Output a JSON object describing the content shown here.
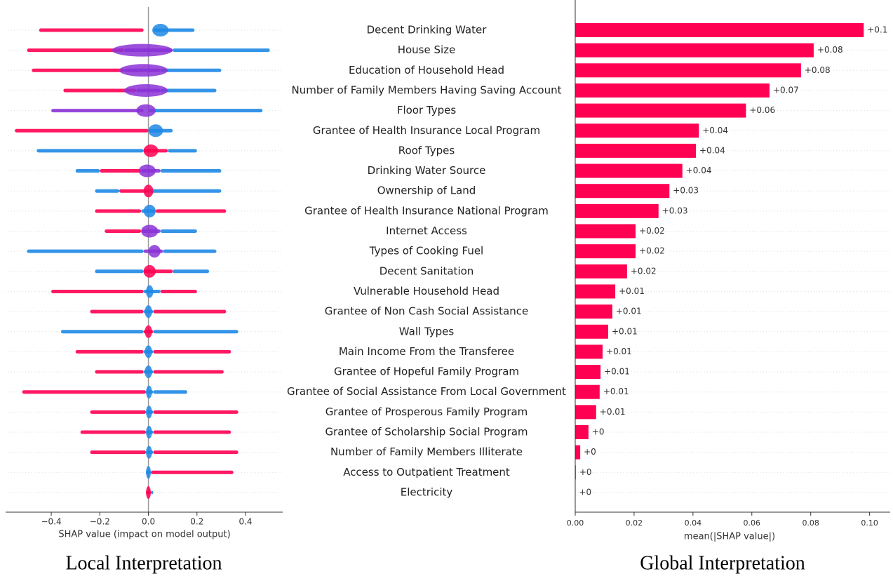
{
  "chart_data": [
    {
      "type": "beeswarm",
      "title": "Local Interpretation",
      "xlabel": "SHAP value (impact on model output)",
      "xlim": [
        -0.588,
        0.553
      ],
      "xticks": [
        {
          "value": -0.4,
          "label": "−0.4"
        },
        {
          "value": -0.2,
          "label": "−0.2"
        },
        {
          "value": 0,
          "label": "0.0"
        },
        0.2,
        0.4
      ],
      "rows": [
        {
          "segments": [
            [
              -0.45,
              -0.02,
              "#ff0052"
            ],
            [
              0.02,
              0.19,
              "#1e88e5"
            ]
          ],
          "dense": [
            0.016,
            0.083
          ]
        },
        {
          "segments": [
            [
              -0.5,
              -0.1,
              "#ff0052"
            ],
            [
              -0.1,
              0.1,
              "#8b33d6"
            ],
            [
              0.1,
              0.5,
              "#1e88e5"
            ]
          ],
          "dense": [
            -0.15,
            0.1
          ]
        },
        {
          "segments": [
            [
              -0.48,
              -0.1,
              "#ff0052"
            ],
            [
              -0.1,
              0.05,
              "#8b33d6"
            ],
            [
              0.05,
              0.3,
              "#1e88e5"
            ]
          ],
          "dense": [
            -0.12,
            0.08
          ]
        },
        {
          "segments": [
            [
              -0.35,
              -0.05,
              "#ff0052"
            ],
            [
              -0.05,
              0.05,
              "#8b33d6"
            ],
            [
              0.05,
              0.28,
              "#1e88e5"
            ]
          ],
          "dense": [
            -0.1,
            0.08
          ]
        },
        {
          "segments": [
            [
              -0.4,
              -0.02,
              "#8b33d6"
            ],
            [
              0.0,
              0.47,
              "#1e88e5"
            ]
          ],
          "dense": [
            -0.05,
            0.03
          ]
        },
        {
          "segments": [
            [
              -0.55,
              0.0,
              "#ff0052"
            ],
            [
              0.0,
              0.1,
              "#1e88e5"
            ]
          ],
          "dense": [
            0.0,
            0.06
          ]
        },
        {
          "segments": [
            [
              -0.46,
              -0.02,
              "#1e88e5"
            ],
            [
              -0.02,
              0.08,
              "#ff0052"
            ],
            [
              0.08,
              0.2,
              "#1e88e5"
            ]
          ],
          "dense": [
            -0.02,
            0.04
          ]
        },
        {
          "segments": [
            [
              -0.3,
              -0.2,
              "#1e88e5"
            ],
            [
              -0.2,
              -0.03,
              "#ff0052"
            ],
            [
              -0.03,
              0.05,
              "#8b33d6"
            ],
            [
              0.05,
              0.3,
              "#1e88e5"
            ]
          ],
          "dense": [
            -0.04,
            0.03
          ]
        },
        {
          "segments": [
            [
              -0.22,
              -0.12,
              "#1e88e5"
            ],
            [
              -0.12,
              0.0,
              "#ff0052"
            ],
            [
              0.0,
              0.3,
              "#1e88e5"
            ]
          ],
          "dense": [
            -0.02,
            0.02
          ]
        },
        {
          "segments": [
            [
              -0.22,
              -0.03,
              "#ff0052"
            ],
            [
              -0.03,
              0.03,
              "#1e88e5"
            ],
            [
              0.03,
              0.32,
              "#ff0052"
            ]
          ],
          "dense": [
            -0.02,
            0.03
          ]
        },
        {
          "segments": [
            [
              -0.18,
              -0.03,
              "#ff0052"
            ],
            [
              -0.03,
              0.05,
              "#8b33d6"
            ],
            [
              0.05,
              0.2,
              "#1e88e5"
            ]
          ],
          "dense": [
            -0.03,
            0.04
          ]
        },
        {
          "segments": [
            [
              -0.5,
              -0.02,
              "#1e88e5"
            ],
            [
              -0.02,
              0.06,
              "#8b33d6"
            ],
            [
              0.06,
              0.28,
              "#1e88e5"
            ]
          ],
          "dense": [
            0.0,
            0.05
          ]
        },
        {
          "segments": [
            [
              -0.22,
              -0.02,
              "#1e88e5"
            ],
            [
              -0.02,
              0.1,
              "#ff0052"
            ],
            [
              0.1,
              0.25,
              "#1e88e5"
            ]
          ],
          "dense": [
            -0.02,
            0.03
          ]
        },
        {
          "segments": [
            [
              -0.4,
              -0.02,
              "#ff0052"
            ],
            [
              -0.02,
              0.05,
              "#1e88e5"
            ],
            [
              0.05,
              0.2,
              "#ff0052"
            ]
          ],
          "dense": [
            -0.01,
            0.02
          ]
        },
        {
          "segments": [
            [
              -0.24,
              -0.02,
              "#ff0052"
            ],
            [
              -0.02,
              0.02,
              "#1e88e5"
            ],
            [
              0.02,
              0.32,
              "#ff0052"
            ]
          ],
          "dense": [
            -0.015,
            0.015
          ]
        },
        {
          "segments": [
            [
              -0.36,
              -0.02,
              "#1e88e5"
            ],
            [
              -0.02,
              0.02,
              "#ff0052"
            ],
            [
              0.02,
              0.37,
              "#1e88e5"
            ]
          ],
          "dense": [
            -0.015,
            0.015
          ]
        },
        {
          "segments": [
            [
              -0.3,
              -0.02,
              "#ff0052"
            ],
            [
              -0.02,
              0.02,
              "#1e88e5"
            ],
            [
              0.02,
              0.34,
              "#ff0052"
            ]
          ],
          "dense": [
            -0.015,
            0.015
          ]
        },
        {
          "segments": [
            [
              -0.22,
              -0.02,
              "#ff0052"
            ],
            [
              -0.02,
              0.02,
              "#1e88e5"
            ],
            [
              0.02,
              0.31,
              "#ff0052"
            ]
          ],
          "dense": [
            -0.015,
            0.015
          ]
        },
        {
          "segments": [
            [
              -0.52,
              -0.01,
              "#ff0052"
            ],
            [
              -0.01,
              0.02,
              "#1e88e5"
            ],
            [
              0.02,
              0.16,
              "#1e88e5"
            ]
          ],
          "dense": [
            -0.01,
            0.015
          ]
        },
        {
          "segments": [
            [
              -0.24,
              -0.01,
              "#ff0052"
            ],
            [
              -0.01,
              0.02,
              "#1e88e5"
            ],
            [
              0.02,
              0.37,
              "#ff0052"
            ]
          ],
          "dense": [
            -0.01,
            0.015
          ]
        },
        {
          "segments": [
            [
              -0.28,
              -0.01,
              "#ff0052"
            ],
            [
              -0.01,
              0.02,
              "#1e88e5"
            ],
            [
              0.02,
              0.34,
              "#ff0052"
            ]
          ],
          "dense": [
            -0.01,
            0.015
          ]
        },
        {
          "segments": [
            [
              -0.24,
              -0.01,
              "#ff0052"
            ],
            [
              -0.01,
              0.02,
              "#1e88e5"
            ],
            [
              0.02,
              0.37,
              "#ff0052"
            ]
          ],
          "dense": [
            -0.01,
            0.015
          ]
        },
        {
          "segments": [
            [
              -0.01,
              0.01,
              "#1e88e5"
            ],
            [
              0.01,
              0.35,
              "#ff0052"
            ]
          ],
          "dense": [
            -0.01,
            0.01
          ]
        },
        {
          "segments": [
            [
              -0.01,
              0.01,
              "#ff0052"
            ],
            [
              0.01,
              0.02,
              "#1e88e5"
            ]
          ],
          "dense": [
            -0.01,
            0.01
          ]
        }
      ]
    },
    {
      "type": "bar",
      "orientation": "horizontal",
      "title": "Global Interpretation",
      "xlabel": "mean(|SHAP value|)",
      "color": "#ff0052",
      "xlim": [
        0,
        0.107
      ],
      "xticks": [
        {
          "value": 0,
          "label": "0.00"
        },
        0.02,
        0.04,
        0.06,
        0.08,
        {
          "value": 0.1,
          "label": "0.10"
        }
      ],
      "categories": [
        "Decent Drinking Water",
        "House Size",
        "Education of Household Head",
        "Number of Family Members Having Saving Account",
        "Floor Types",
        "Grantee of Health Insurance Local Program",
        "Roof Types",
        "Drinking Water Source",
        "Ownership of Land",
        "Grantee of Health Insurance National Program",
        "Internet Access",
        "Types of Cooking Fuel",
        "Decent Sanitation",
        "Vulnerable Household Head",
        "Grantee of Non Cash Social Assistance",
        "Wall Types",
        "Main Income From the Transferee",
        "Grantee of Hopeful Family Program",
        "Grantee of Social Assistance From Local Government",
        "Grantee of Prosperous Family Program",
        "Grantee of Scholarship Social Program",
        "Number of Family Members Illiterate",
        "Access to Outpatient Treatment",
        "Electricity"
      ],
      "values": [
        0.098,
        0.081,
        0.0767,
        0.066,
        0.058,
        0.042,
        0.041,
        0.0364,
        0.032,
        0.0283,
        0.0205,
        0.0205,
        0.0176,
        0.0136,
        0.0126,
        0.0112,
        0.0093,
        0.0086,
        0.0083,
        0.0071,
        0.0045,
        0.0017,
        0.0002,
        0.0001
      ],
      "value_labels": [
        "+0.1",
        "+0.08",
        "+0.08",
        "+0.07",
        "+0.06",
        "+0.04",
        "+0.04",
        "+0.04",
        "+0.03",
        "+0.03",
        "+0.02",
        "+0.02",
        "+0.02",
        "+0.01",
        "+0.01",
        "+0.01",
        "+0.01",
        "+0.01",
        "+0.01",
        "+0.01",
        "+0",
        "+0",
        "+0",
        "+0"
      ]
    }
  ]
}
